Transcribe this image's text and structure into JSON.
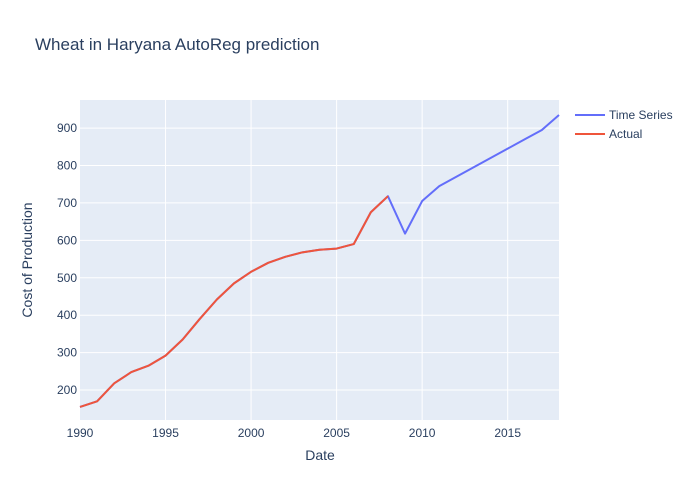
{
  "chart_data": {
    "type": "line",
    "title": "Wheat in Haryana AutoReg prediction",
    "xlabel": "Date",
    "ylabel": "Cost of Production",
    "xlim": [
      1990,
      2018
    ],
    "ylim": [
      120,
      975
    ],
    "x_ticks": [
      1990,
      1995,
      2000,
      2005,
      2010,
      2015
    ],
    "y_ticks": [
      200,
      300,
      400,
      500,
      600,
      700,
      800,
      900
    ],
    "grid": true,
    "legend_position": "top-right",
    "series": [
      {
        "name": "Time Series",
        "color": "#636efa",
        "x": [
          1990,
          1991,
          1992,
          1993,
          1994,
          1995,
          1996,
          1997,
          1998,
          1999,
          2000,
          2001,
          2002,
          2003,
          2004,
          2005,
          2006,
          2007,
          2008,
          2009,
          2010,
          2011,
          2012,
          2013,
          2014,
          2015,
          2016,
          2017,
          2018
        ],
        "values": [
          155,
          170,
          218,
          248,
          265,
          292,
          335,
          390,
          442,
          485,
          516,
          540,
          556,
          568,
          575,
          578,
          590,
          675,
          718,
          618,
          705,
          745,
          770,
          795,
          820,
          845,
          870,
          895,
          935
        ]
      },
      {
        "name": "Actual",
        "color": "#ef553b",
        "x": [
          1990,
          1991,
          1992,
          1993,
          1994,
          1995,
          1996,
          1997,
          1998,
          1999,
          2000,
          2001,
          2002,
          2003,
          2004,
          2005,
          2006,
          2007,
          2008
        ],
        "values": [
          155,
          170,
          218,
          248,
          265,
          292,
          335,
          390,
          442,
          485,
          516,
          540,
          556,
          568,
          575,
          578,
          590,
          675,
          718
        ]
      }
    ]
  }
}
